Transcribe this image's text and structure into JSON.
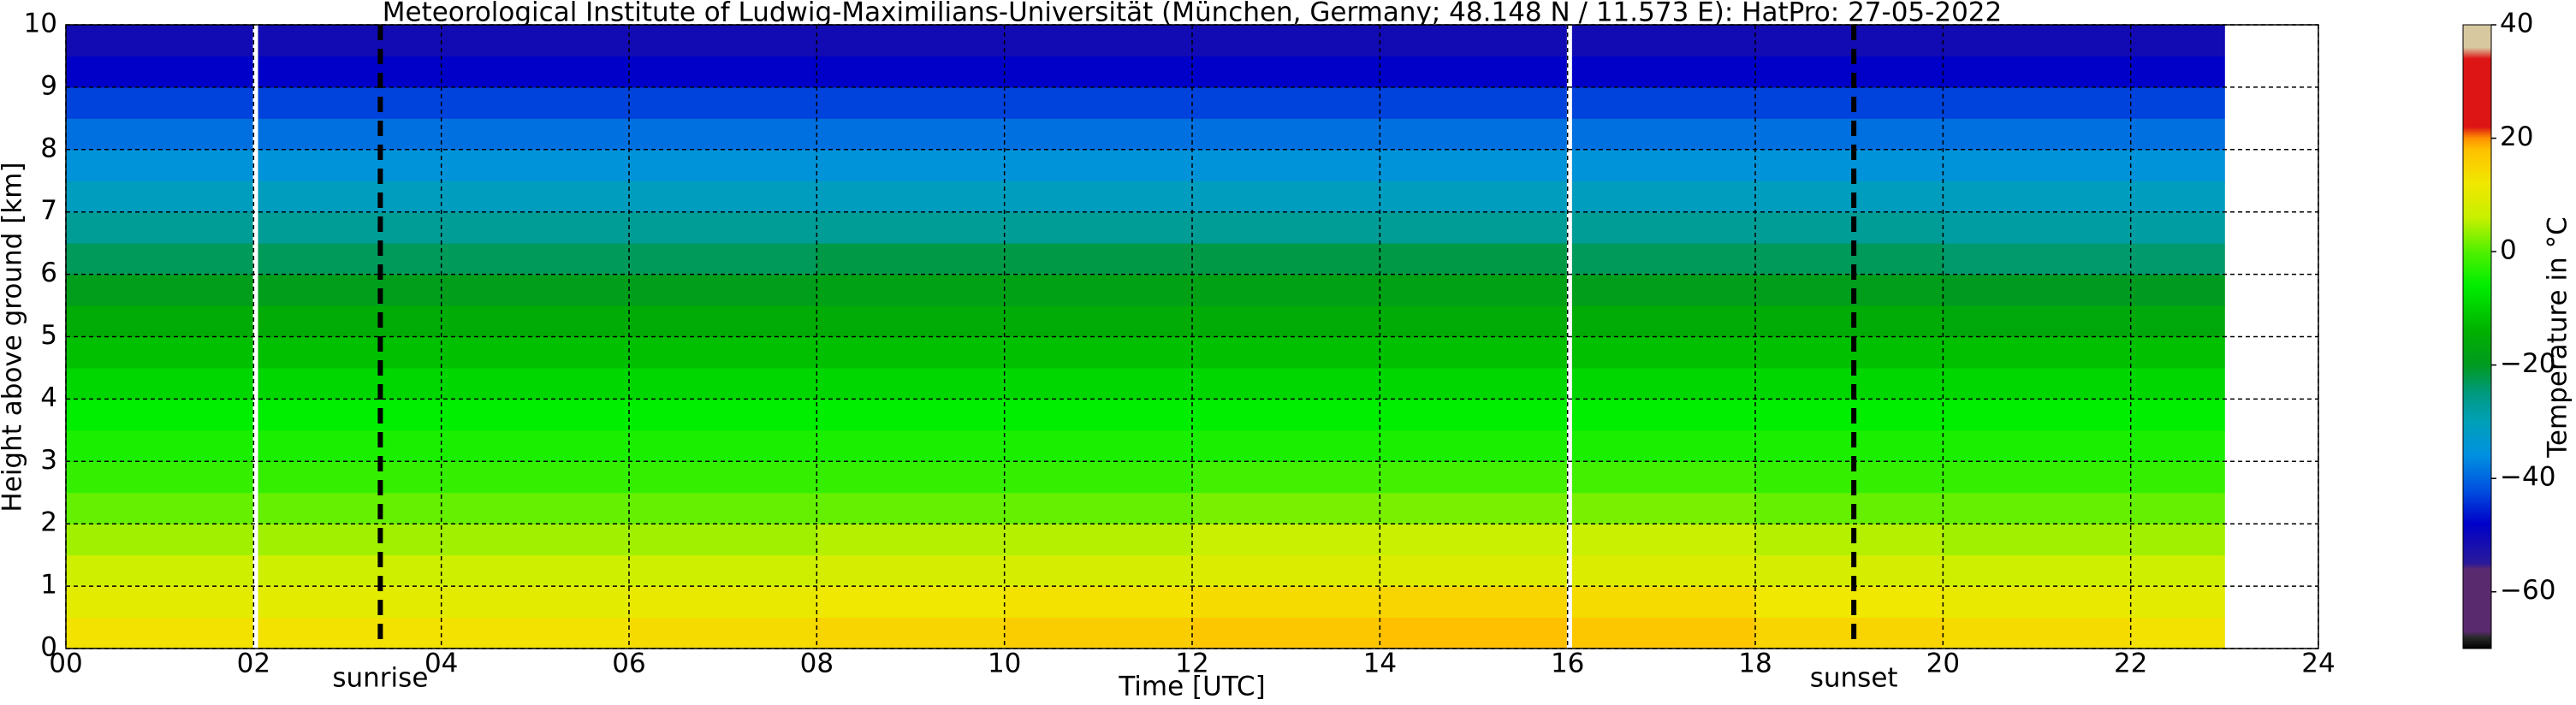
{
  "chart_data": {
    "type": "heatmap",
    "title": "Meteorological Institute of Ludwig-Maximilians-Universität (München, Germany; 48.148 N / 11.573 E):    HatPro: 27-05-2022",
    "xlabel": "Time [UTC]",
    "ylabel": "Height above ground [km]",
    "colorbar_label": "Temperature in °C",
    "x_edges": [
      0,
      2,
      4,
      6,
      8,
      10,
      12,
      14,
      16,
      18,
      20,
      22,
      23
    ],
    "y_edges": [
      0,
      0.5,
      1,
      1.5,
      2,
      2.5,
      3,
      3.5,
      4,
      4.5,
      5,
      5.5,
      6,
      6.5,
      7,
      7.5,
      8,
      8.5,
      9,
      9.5,
      10
    ],
    "values": [
      [
        13,
        10,
        7,
        4,
        1,
        -2,
        -4,
        -6,
        -9,
        -12,
        -15,
        -19,
        -23,
        -27,
        -31,
        -35,
        -39,
        -43,
        -48,
        -51
      ],
      [
        13,
        10,
        7,
        4,
        1,
        -2,
        -4,
        -6,
        -9,
        -12,
        -15,
        -19,
        -23,
        -27,
        -31,
        -35,
        -39,
        -43,
        -48,
        -51
      ],
      [
        13,
        10,
        7,
        4,
        1,
        -2,
        -4,
        -6,
        -9,
        -12,
        -15,
        -19,
        -23,
        -27,
        -31,
        -35,
        -39,
        -43,
        -48,
        -51
      ],
      [
        14,
        11,
        7,
        4,
        1,
        -2,
        -4,
        -6,
        -9,
        -12,
        -15,
        -19,
        -23,
        -27,
        -31,
        -35,
        -39,
        -43,
        -48,
        -51
      ],
      [
        15,
        12,
        8,
        5,
        1,
        -2,
        -4,
        -6,
        -9,
        -12,
        -15,
        -18,
        -22,
        -27,
        -31,
        -35,
        -39,
        -43,
        -48,
        -51
      ],
      [
        16,
        13,
        8,
        5,
        1,
        -2,
        -4,
        -6,
        -9,
        -12,
        -15,
        -18,
        -22,
        -27,
        -31,
        -35,
        -39,
        -43,
        -48,
        -51
      ],
      [
        17,
        14,
        9,
        6,
        2,
        -1,
        -4,
        -6,
        -9,
        -12,
        -15,
        -18,
        -22,
        -27,
        -31,
        -35,
        -39,
        -43,
        -48,
        -51
      ],
      [
        18,
        15,
        9,
        6,
        2,
        -1,
        -4,
        -6,
        -9,
        -12,
        -15,
        -18,
        -22,
        -27,
        -31,
        -35,
        -39,
        -43,
        -48,
        -51
      ],
      [
        17,
        14,
        9,
        6,
        2,
        -1,
        -4,
        -6,
        -9,
        -12,
        -15,
        -19,
        -23,
        -27,
        -31,
        -35,
        -39,
        -43,
        -48,
        -51
      ],
      [
        15,
        12,
        8,
        5,
        1,
        -2,
        -4,
        -6,
        -9,
        -12,
        -15,
        -19,
        -23,
        -27,
        -31,
        -35,
        -39,
        -43,
        -48,
        -51
      ],
      [
        14,
        11,
        7,
        4,
        1,
        -2,
        -4,
        -6,
        -9,
        -12,
        -16,
        -20,
        -24,
        -28,
        -31,
        -35,
        -39,
        -43,
        -48,
        -51
      ],
      [
        13,
        10,
        7,
        4,
        1,
        -2,
        -4,
        -6,
        -9,
        -12,
        -16,
        -20,
        -24,
        -28,
        -31,
        -35,
        -39,
        -43,
        -48,
        -51
      ]
    ],
    "xlim": [
      0,
      24
    ],
    "ylim": [
      0,
      10
    ],
    "xticks": [
      {
        "value": 0,
        "label": "00"
      },
      {
        "value": 2,
        "label": "02"
      },
      {
        "value": 4,
        "label": "04"
      },
      {
        "value": 6,
        "label": "06"
      },
      {
        "value": 8,
        "label": "08"
      },
      10,
      12,
      14,
      16,
      18,
      20,
      22,
      24
    ],
    "yticks": [
      0,
      1,
      2,
      3,
      4,
      5,
      6,
      7,
      8,
      9,
      10
    ],
    "grid": true,
    "gaps": [
      2.02,
      16.02
    ],
    "annotations": [
      {
        "text": "sunrise",
        "x": 3.35
      },
      {
        "text": "sunset",
        "x": 19.05
      }
    ],
    "clim": [
      -70,
      40
    ],
    "cticks": [
      40,
      20,
      0,
      {
        "value": -20,
        "label": "−20"
      },
      {
        "value": -40,
        "label": "−40"
      },
      {
        "value": -60,
        "label": "−60"
      }
    ],
    "colorscale": [
      [
        -70,
        "#000000"
      ],
      [
        -68,
        "#2a2a2a"
      ],
      [
        -67,
        "#5a2a6e"
      ],
      [
        -56,
        "#5a2a6e"
      ],
      [
        -55,
        "#2a1a9a"
      ],
      [
        -48,
        "#0000c8"
      ],
      [
        -42,
        "#0050e0"
      ],
      [
        -36,
        "#0090e0"
      ],
      [
        -30,
        "#00a0b8"
      ],
      [
        -25,
        "#009a80"
      ],
      [
        -20,
        "#009a20"
      ],
      [
        -14,
        "#00b000"
      ],
      [
        -6,
        "#00ee00"
      ],
      [
        0,
        "#50f000"
      ],
      [
        6,
        "#c8f000"
      ],
      [
        12,
        "#f0e800"
      ],
      [
        18,
        "#ffc000"
      ],
      [
        20,
        "#ff9000"
      ],
      [
        22,
        "#dd1515"
      ],
      [
        34,
        "#dd1515"
      ],
      [
        36,
        "#d8c8a0"
      ],
      [
        40,
        "#d8c8a0"
      ]
    ]
  }
}
